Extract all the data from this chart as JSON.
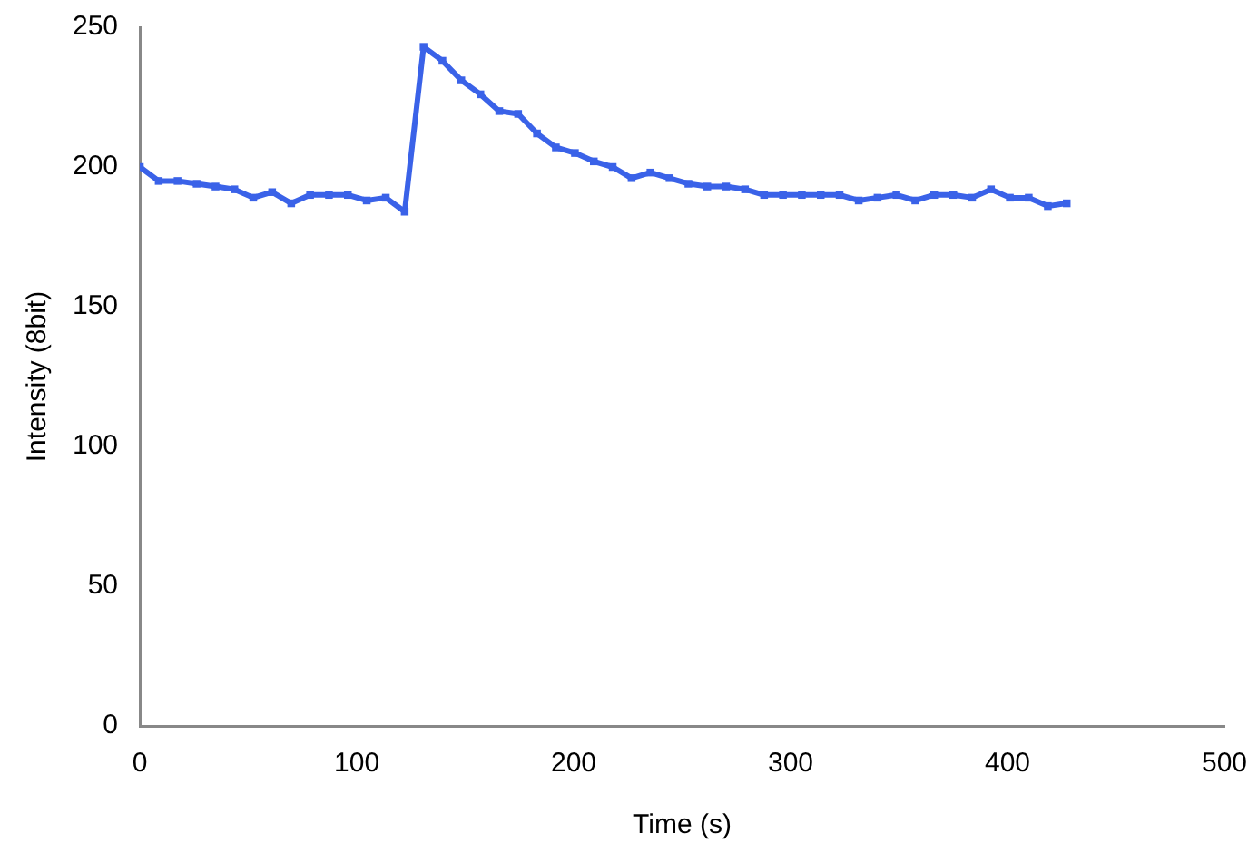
{
  "chart_data": {
    "type": "line",
    "xlabel": "Time (s)",
    "ylabel": "Intensity (8bit)",
    "x": [
      0,
      8.7,
      17.4,
      26.2,
      34.9,
      43.6,
      52.3,
      61.0,
      69.8,
      78.5,
      87.2,
      95.9,
      104.6,
      113.4,
      122.1,
      130.8,
      139.5,
      148.2,
      157.0,
      165.7,
      174.4,
      183.1,
      191.8,
      200.6,
      209.3,
      218.0,
      226.7,
      235.4,
      244.2,
      252.9,
      261.6,
      270.3,
      279.0,
      287.8,
      296.5,
      305.2,
      313.9,
      322.6,
      331.4,
      340.1,
      348.8,
      357.5,
      366.2,
      375.0,
      383.7,
      392.4,
      401.1,
      409.8,
      418.6,
      427.3
    ],
    "series": [
      {
        "color": "#3a62e8",
        "values": [
          200,
          195,
          195,
          194,
          193,
          192,
          189,
          191,
          187,
          190,
          190,
          190,
          188,
          189,
          184,
          243,
          238,
          231,
          226,
          220,
          219,
          212,
          207,
          205,
          202,
          200,
          196,
          198,
          196,
          194,
          193,
          193,
          192,
          190,
          190,
          190,
          190,
          190,
          188,
          189,
          190,
          188,
          190,
          190,
          189,
          192,
          189,
          189,
          186,
          187
        ]
      }
    ],
    "xlim": [
      0,
      500
    ],
    "xticks": [
      0,
      100,
      200,
      300,
      400,
      500
    ],
    "ylim": [
      0,
      250
    ],
    "yticks": [
      0,
      50,
      100,
      150,
      200,
      250
    ],
    "grid": false,
    "legend": false,
    "marker": "square",
    "line_style": "solid"
  }
}
